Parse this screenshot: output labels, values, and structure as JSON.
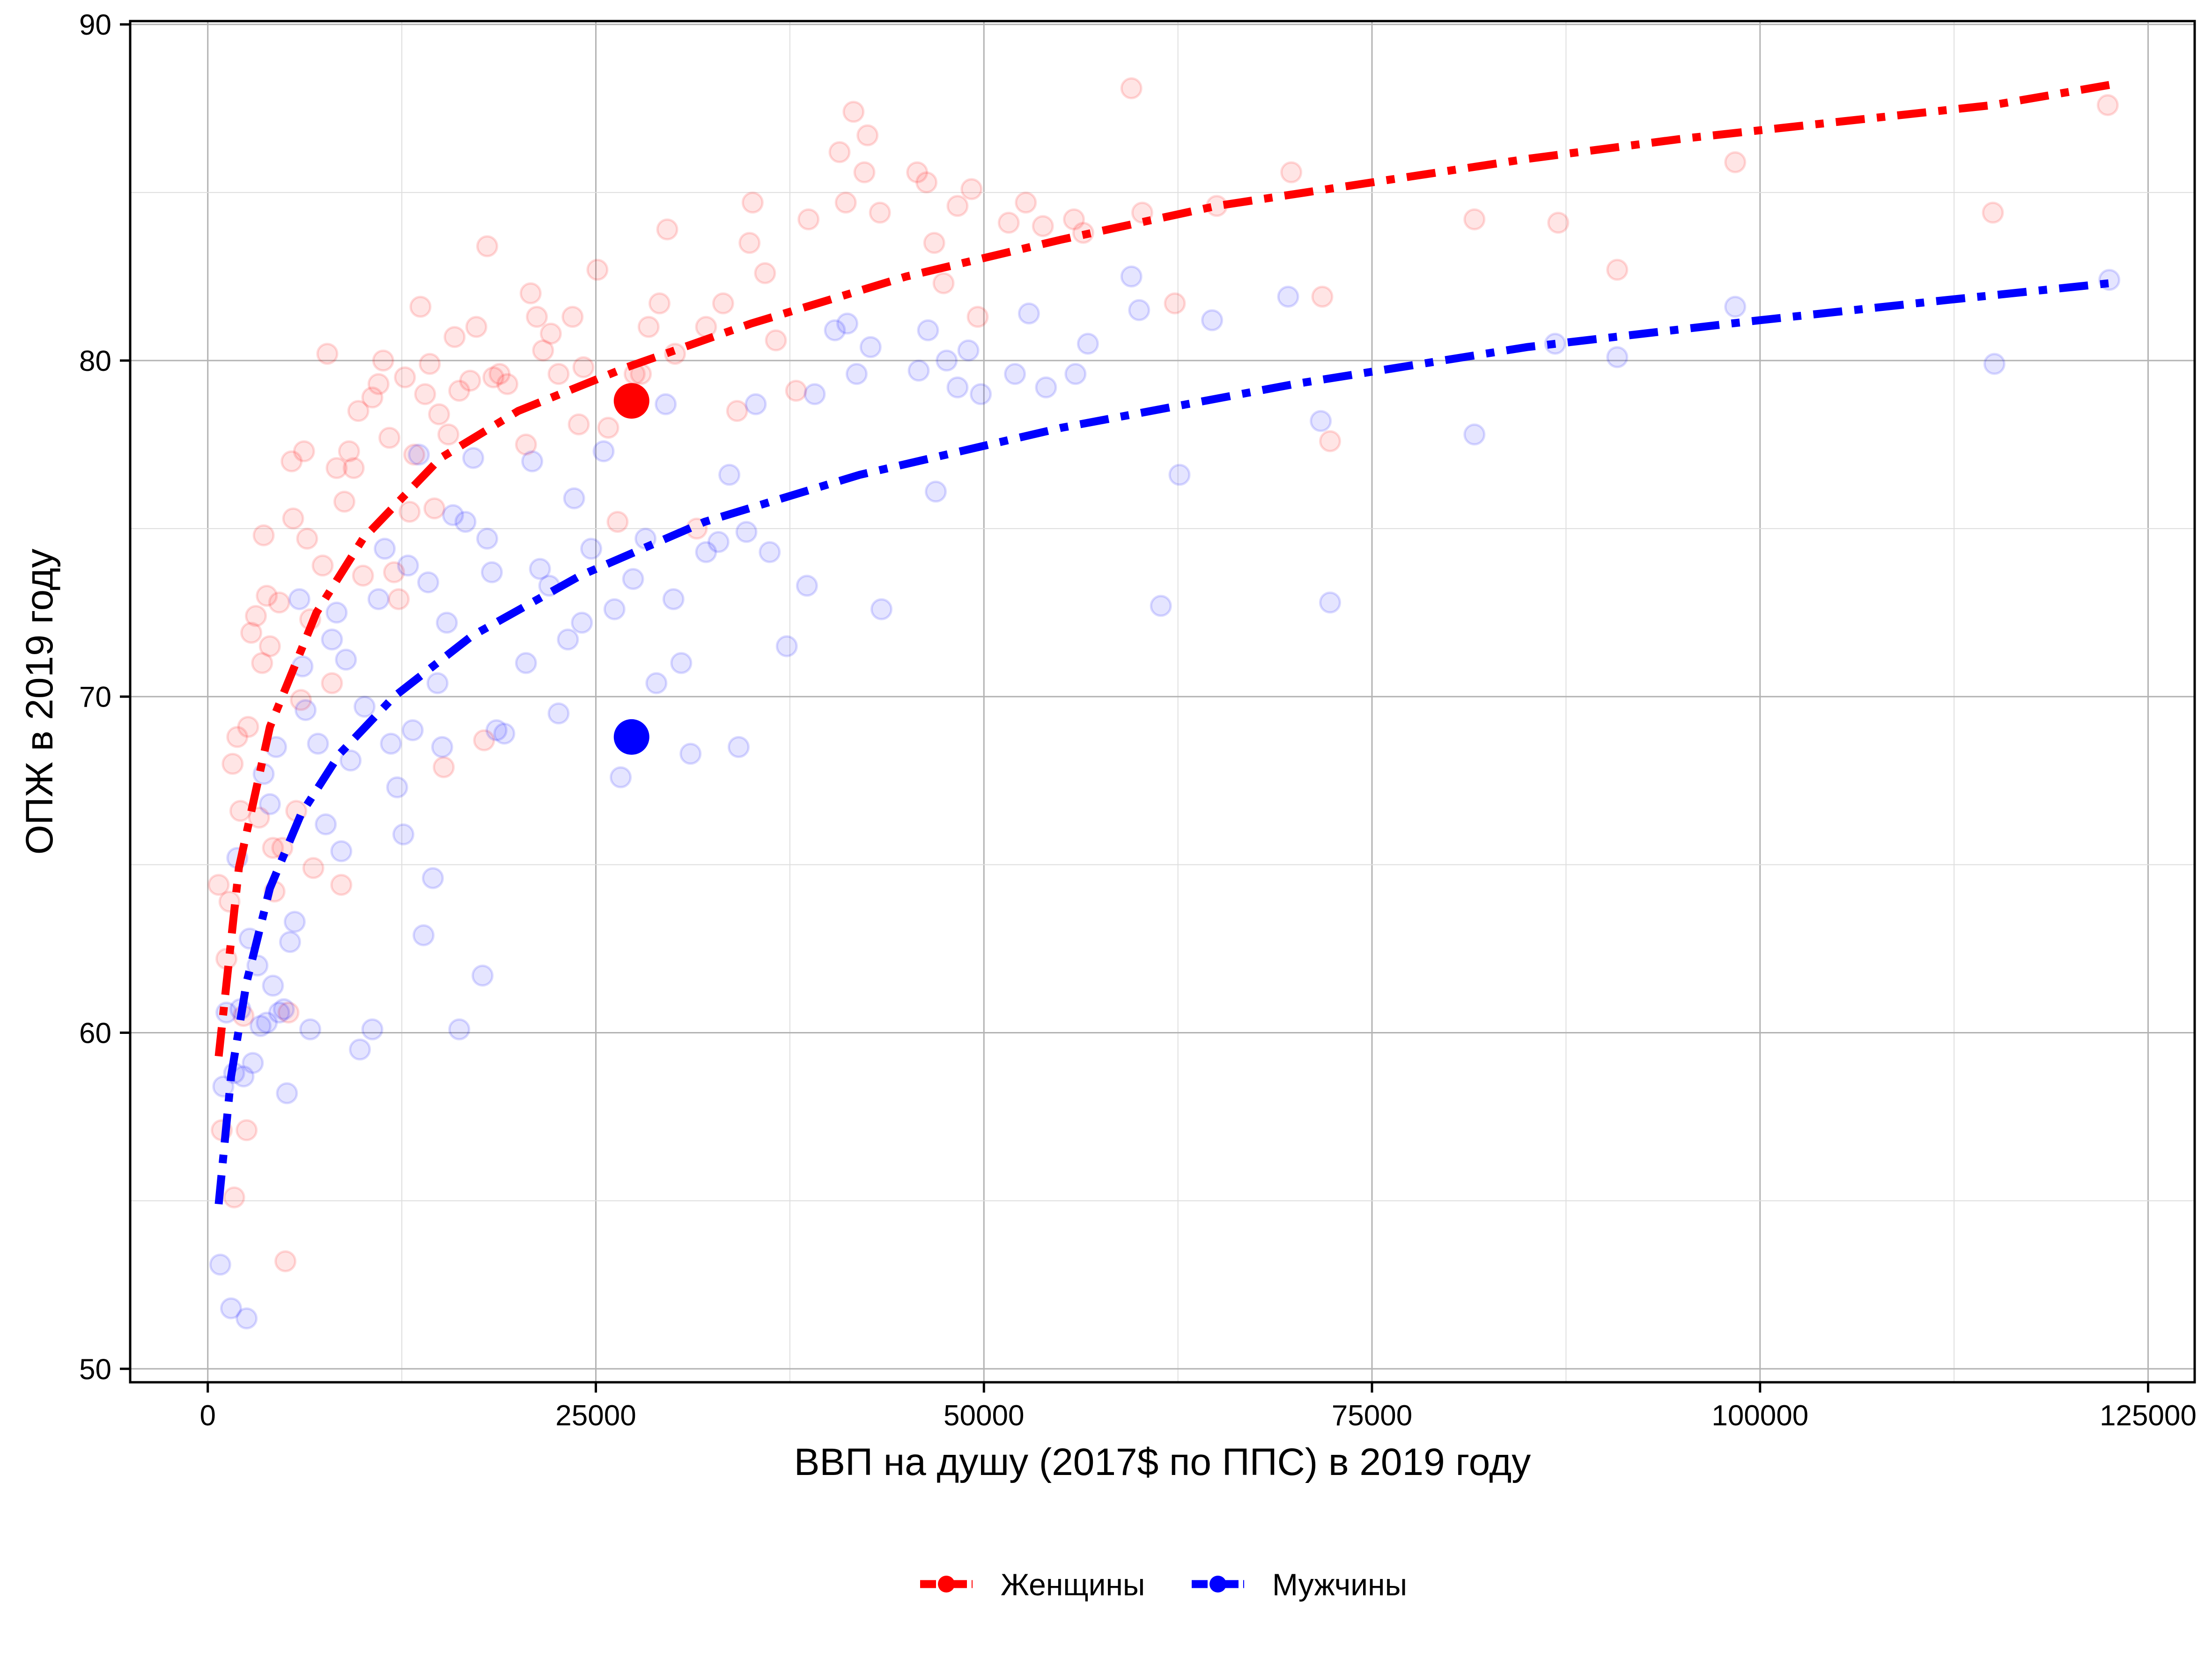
{
  "chart_data": {
    "type": "scatter",
    "title": "",
    "xlabel": "ВВП на душу (2017$ по ППС) в 2019 году",
    "ylabel": "ОПЖ в 2019 году",
    "xlim": [
      -5000,
      128000
    ],
    "ylim": [
      49.6,
      90.1
    ],
    "x_ticks": [
      0,
      25000,
      50000,
      75000,
      100000,
      125000
    ],
    "x_tick_labels": [
      "0",
      "25000",
      "50000",
      "75000",
      "100000",
      "125000"
    ],
    "y_ticks": [
      50,
      60,
      70,
      80,
      90
    ],
    "y_tick_labels": [
      "50",
      "60",
      "70",
      "80",
      "90"
    ],
    "grid": true,
    "legend_position": "bottom-center",
    "series": [
      {
        "name": "Женщины",
        "color": "#ff0000",
        "trend_line_style": "dash-dot",
        "trend_x": [
          700,
          2000,
          4000,
          7000,
          10000,
          15000,
          20000,
          27000,
          35000,
          45000,
          55000,
          65000,
          75000,
          85000,
          95000,
          105000,
          115000,
          122500
        ],
        "trend_y": [
          59.3,
          64.9,
          69.1,
          72.5,
          74.7,
          77.1,
          78.5,
          79.8,
          81.1,
          82.5,
          83.6,
          84.6,
          85.3,
          86.0,
          86.6,
          87.1,
          87.6,
          88.2
        ],
        "highlight": {
          "x": 27300,
          "y": 78.8
        },
        "points": [
          [
            700,
            64.4
          ],
          [
            900,
            57.1
          ],
          [
            1200,
            62.2
          ],
          [
            1400,
            63.9
          ],
          [
            1600,
            68.0
          ],
          [
            1700,
            55.1
          ],
          [
            1900,
            68.8
          ],
          [
            2100,
            66.6
          ],
          [
            2300,
            60.5
          ],
          [
            2500,
            57.1
          ],
          [
            2600,
            69.1
          ],
          [
            2800,
            71.9
          ],
          [
            3100,
            72.4
          ],
          [
            3300,
            66.4
          ],
          [
            3500,
            71.0
          ],
          [
            3600,
            74.8
          ],
          [
            3800,
            73.0
          ],
          [
            4000,
            71.5
          ],
          [
            4200,
            65.5
          ],
          [
            4300,
            64.2
          ],
          [
            4600,
            72.8
          ],
          [
            4800,
            65.5
          ],
          [
            5000,
            53.2
          ],
          [
            5200,
            60.6
          ],
          [
            5400,
            77.0
          ],
          [
            5500,
            75.3
          ],
          [
            5700,
            66.6
          ],
          [
            6000,
            69.9
          ],
          [
            6200,
            77.3
          ],
          [
            6400,
            74.7
          ],
          [
            6600,
            72.3
          ],
          [
            6800,
            64.9
          ],
          [
            7400,
            73.9
          ],
          [
            7700,
            80.2
          ],
          [
            8000,
            70.4
          ],
          [
            8300,
            76.8
          ],
          [
            8600,
            64.4
          ],
          [
            8800,
            75.8
          ],
          [
            9100,
            77.3
          ],
          [
            9400,
            76.8
          ],
          [
            9700,
            78.5
          ],
          [
            10000,
            73.6
          ],
          [
            10600,
            78.9
          ],
          [
            11000,
            79.3
          ],
          [
            11300,
            80.0
          ],
          [
            11700,
            77.7
          ],
          [
            12000,
            73.7
          ],
          [
            12300,
            72.9
          ],
          [
            12700,
            79.5
          ],
          [
            13000,
            75.5
          ],
          [
            13300,
            77.2
          ],
          [
            13700,
            81.6
          ],
          [
            14000,
            79.0
          ],
          [
            14300,
            79.9
          ],
          [
            14600,
            75.6
          ],
          [
            14900,
            78.4
          ],
          [
            15200,
            67.9
          ],
          [
            15500,
            77.8
          ],
          [
            15900,
            80.7
          ],
          [
            16200,
            79.1
          ],
          [
            16900,
            79.4
          ],
          [
            17300,
            81.0
          ],
          [
            17800,
            68.7
          ],
          [
            18000,
            83.4
          ],
          [
            18400,
            79.5
          ],
          [
            18800,
            79.6
          ],
          [
            19300,
            79.3
          ],
          [
            20500,
            77.5
          ],
          [
            20800,
            82.0
          ],
          [
            21200,
            81.3
          ],
          [
            21600,
            80.3
          ],
          [
            22100,
            80.8
          ],
          [
            22600,
            79.6
          ],
          [
            23500,
            81.3
          ],
          [
            23900,
            78.1
          ],
          [
            24200,
            79.8
          ],
          [
            25100,
            82.7
          ],
          [
            25800,
            78.0
          ],
          [
            26400,
            75.2
          ],
          [
            27500,
            79.6
          ],
          [
            27900,
            79.6
          ],
          [
            28400,
            81.0
          ],
          [
            29100,
            81.7
          ],
          [
            29600,
            83.9
          ],
          [
            30100,
            80.2
          ],
          [
            31500,
            75.0
          ],
          [
            32100,
            81.0
          ],
          [
            33200,
            81.7
          ],
          [
            34100,
            78.5
          ],
          [
            34900,
            83.5
          ],
          [
            35100,
            84.7
          ],
          [
            35900,
            82.6
          ],
          [
            36600,
            80.6
          ],
          [
            37900,
            79.1
          ],
          [
            38700,
            84.2
          ],
          [
            40700,
            86.2
          ],
          [
            41100,
            84.7
          ],
          [
            41600,
            87.4
          ],
          [
            42300,
            85.6
          ],
          [
            42500,
            86.7
          ],
          [
            43300,
            84.4
          ],
          [
            45700,
            85.6
          ],
          [
            46300,
            85.3
          ],
          [
            46800,
            83.5
          ],
          [
            47400,
            82.3
          ],
          [
            48300,
            84.6
          ],
          [
            49200,
            85.1
          ],
          [
            49600,
            81.3
          ],
          [
            51600,
            84.1
          ],
          [
            52700,
            84.7
          ],
          [
            53800,
            84.0
          ],
          [
            55800,
            84.2
          ],
          [
            56400,
            83.8
          ],
          [
            59500,
            88.1
          ],
          [
            60200,
            84.4
          ],
          [
            62300,
            81.7
          ],
          [
            65000,
            84.6
          ],
          [
            69800,
            85.6
          ],
          [
            71800,
            81.9
          ],
          [
            72300,
            77.6
          ],
          [
            81600,
            84.2
          ],
          [
            87000,
            84.1
          ],
          [
            90800,
            82.7
          ],
          [
            98400,
            85.9
          ],
          [
            115000,
            84.4
          ],
          [
            122400,
            87.6
          ]
        ]
      },
      {
        "name": "Мужчины",
        "color": "#0000ff",
        "trend_line_style": "dash-dot",
        "trend_x": [
          700,
          1500,
          2500,
          4000,
          6000,
          8500,
          12000,
          17000,
          24000,
          32000,
          42000,
          55000,
          70000,
          85000,
          100000,
          112000,
          122500
        ],
        "trend_y": [
          54.9,
          58.7,
          61.5,
          64.3,
          66.5,
          68.3,
          70.0,
          71.8,
          73.6,
          75.2,
          76.6,
          78.0,
          79.3,
          80.4,
          81.2,
          81.8,
          82.3
        ],
        "highlight": {
          "x": 27300,
          "y": 68.8
        },
        "points": [
          [
            800,
            53.1
          ],
          [
            1000,
            58.4
          ],
          [
            1200,
            60.6
          ],
          [
            1500,
            51.8
          ],
          [
            1700,
            58.8
          ],
          [
            1900,
            65.2
          ],
          [
            2100,
            60.7
          ],
          [
            2300,
            58.7
          ],
          [
            2500,
            51.5
          ],
          [
            2700,
            62.8
          ],
          [
            2900,
            59.1
          ],
          [
            3200,
            62.0
          ],
          [
            3400,
            60.2
          ],
          [
            3600,
            67.7
          ],
          [
            3800,
            60.3
          ],
          [
            4000,
            66.8
          ],
          [
            4200,
            61.4
          ],
          [
            4400,
            68.5
          ],
          [
            4600,
            60.6
          ],
          [
            4900,
            60.7
          ],
          [
            5100,
            58.2
          ],
          [
            5300,
            62.7
          ],
          [
            5600,
            63.3
          ],
          [
            5900,
            72.9
          ],
          [
            6100,
            70.9
          ],
          [
            6300,
            69.6
          ],
          [
            6600,
            60.1
          ],
          [
            7100,
            68.6
          ],
          [
            7600,
            66.2
          ],
          [
            8000,
            71.7
          ],
          [
            8300,
            72.5
          ],
          [
            8600,
            65.4
          ],
          [
            8900,
            71.1
          ],
          [
            9200,
            68.1
          ],
          [
            9800,
            59.5
          ],
          [
            10100,
            69.7
          ],
          [
            10600,
            60.1
          ],
          [
            11000,
            72.9
          ],
          [
            11400,
            74.4
          ],
          [
            11800,
            68.6
          ],
          [
            12200,
            67.3
          ],
          [
            12600,
            65.9
          ],
          [
            12900,
            73.9
          ],
          [
            13200,
            69.0
          ],
          [
            13600,
            77.2
          ],
          [
            13900,
            62.9
          ],
          [
            14200,
            73.4
          ],
          [
            14500,
            64.6
          ],
          [
            14800,
            70.4
          ],
          [
            15100,
            68.5
          ],
          [
            15400,
            72.2
          ],
          [
            15800,
            75.4
          ],
          [
            16200,
            60.1
          ],
          [
            16600,
            75.2
          ],
          [
            17100,
            77.1
          ],
          [
            17700,
            61.7
          ],
          [
            18000,
            74.7
          ],
          [
            18300,
            73.7
          ],
          [
            18600,
            69.0
          ],
          [
            19100,
            68.9
          ],
          [
            20500,
            71.0
          ],
          [
            20900,
            77.0
          ],
          [
            21400,
            73.8
          ],
          [
            22000,
            73.3
          ],
          [
            22600,
            69.5
          ],
          [
            23200,
            71.7
          ],
          [
            23600,
            75.9
          ],
          [
            24100,
            72.2
          ],
          [
            24700,
            74.4
          ],
          [
            25500,
            77.3
          ],
          [
            26200,
            72.6
          ],
          [
            26600,
            67.6
          ],
          [
            27400,
            73.5
          ],
          [
            28200,
            74.7
          ],
          [
            28900,
            70.4
          ],
          [
            29500,
            78.7
          ],
          [
            30000,
            72.9
          ],
          [
            30500,
            71.0
          ],
          [
            31100,
            68.3
          ],
          [
            32100,
            74.3
          ],
          [
            32900,
            74.6
          ],
          [
            33600,
            76.6
          ],
          [
            34200,
            68.5
          ],
          [
            34700,
            74.9
          ],
          [
            35300,
            78.7
          ],
          [
            36200,
            74.3
          ],
          [
            37300,
            71.5
          ],
          [
            38600,
            73.3
          ],
          [
            39100,
            79.0
          ],
          [
            40400,
            80.9
          ],
          [
            41200,
            81.1
          ],
          [
            41800,
            79.6
          ],
          [
            42700,
            80.4
          ],
          [
            43400,
            72.6
          ],
          [
            45800,
            79.7
          ],
          [
            46400,
            80.9
          ],
          [
            46900,
            76.1
          ],
          [
            47600,
            80.0
          ],
          [
            48300,
            79.2
          ],
          [
            49000,
            80.3
          ],
          [
            49800,
            79.0
          ],
          [
            52000,
            79.6
          ],
          [
            52900,
            81.4
          ],
          [
            54000,
            79.2
          ],
          [
            55900,
            79.6
          ],
          [
            56700,
            80.5
          ],
          [
            59500,
            82.5
          ],
          [
            60000,
            81.5
          ],
          [
            61400,
            72.7
          ],
          [
            62600,
            76.6
          ],
          [
            64700,
            81.2
          ],
          [
            69600,
            81.9
          ],
          [
            71700,
            78.2
          ],
          [
            72300,
            72.8
          ],
          [
            81600,
            77.8
          ],
          [
            86800,
            80.5
          ],
          [
            90800,
            80.1
          ],
          [
            98400,
            81.6
          ],
          [
            115100,
            79.9
          ],
          [
            122500,
            82.4
          ]
        ]
      }
    ]
  }
}
